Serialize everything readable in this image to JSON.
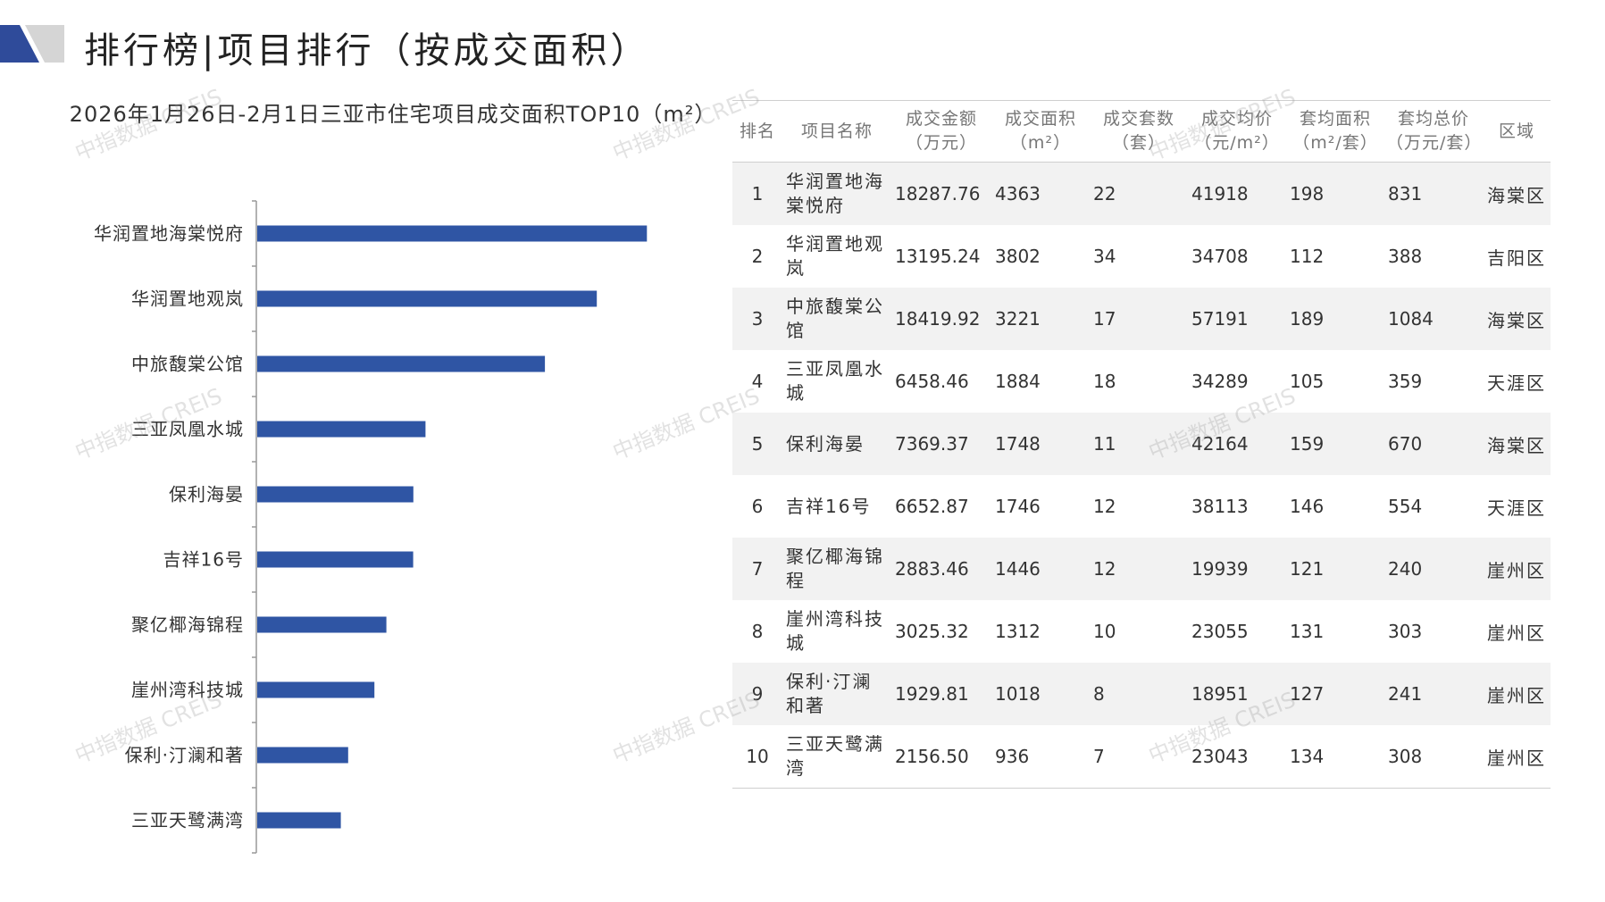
{
  "page": {
    "title": "排行榜|项目排行（按成交面积）",
    "watermark": "中指数据 CREIS"
  },
  "colors": {
    "bar": "#2f55a4",
    "header_dark": "#2f4b9a",
    "header_light": "#d5d5d5"
  },
  "chart_data": {
    "type": "bar",
    "orientation": "horizontal",
    "title": "2026年1月26日-2月1日三亚市住宅项目成交面积TOP10（m²）",
    "categories": [
      "华润置地海棠悦府",
      "华润置地观岚",
      "中旅馥棠公馆",
      "三亚凤凰水城",
      "保利海晏",
      "吉祥16号",
      "聚亿椰海锦程",
      "崖州湾科技城",
      "保利·汀澜和著",
      "三亚天鹭满湾"
    ],
    "values": [
      4363,
      3802,
      3221,
      1884,
      1748,
      1746,
      1446,
      1312,
      1018,
      936
    ],
    "xlim": [
      0,
      5000
    ],
    "grid": false,
    "legend": "none"
  },
  "table": {
    "headers": [
      "排名",
      "项目名称",
      "成交金额（万元）",
      "成交面积（m²）",
      "成交套数（套）",
      "成交均价（元/m²）",
      "套均面积（m²/套）",
      "套均总价（万元/套）",
      "区域"
    ],
    "rows": [
      [
        "1",
        "华润置地海棠悦府",
        "18287.76",
        "4363",
        "22",
        "41918",
        "198",
        "831",
        "海棠区"
      ],
      [
        "2",
        "华润置地观岚",
        "13195.24",
        "3802",
        "34",
        "34708",
        "112",
        "388",
        "吉阳区"
      ],
      [
        "3",
        "中旅馥棠公馆",
        "18419.92",
        "3221",
        "17",
        "57191",
        "189",
        "1084",
        "海棠区"
      ],
      [
        "4",
        "三亚凤凰水城",
        "6458.46",
        "1884",
        "18",
        "34289",
        "105",
        "359",
        "天涯区"
      ],
      [
        "5",
        "保利海晏",
        "7369.37",
        "1748",
        "11",
        "42164",
        "159",
        "670",
        "海棠区"
      ],
      [
        "6",
        "吉祥16号",
        "6652.87",
        "1746",
        "12",
        "38113",
        "146",
        "554",
        "天涯区"
      ],
      [
        "7",
        "聚亿椰海锦程",
        "2883.46",
        "1446",
        "12",
        "19939",
        "121",
        "240",
        "崖州区"
      ],
      [
        "8",
        "崖州湾科技城",
        "3025.32",
        "1312",
        "10",
        "23055",
        "131",
        "303",
        "崖州区"
      ],
      [
        "9",
        "保利·汀澜和著",
        "1929.81",
        "1018",
        "8",
        "18951",
        "127",
        "241",
        "崖州区"
      ],
      [
        "10",
        "三亚天鹭满湾",
        "2156.50",
        "936",
        "7",
        "23043",
        "134",
        "308",
        "崖州区"
      ]
    ]
  }
}
